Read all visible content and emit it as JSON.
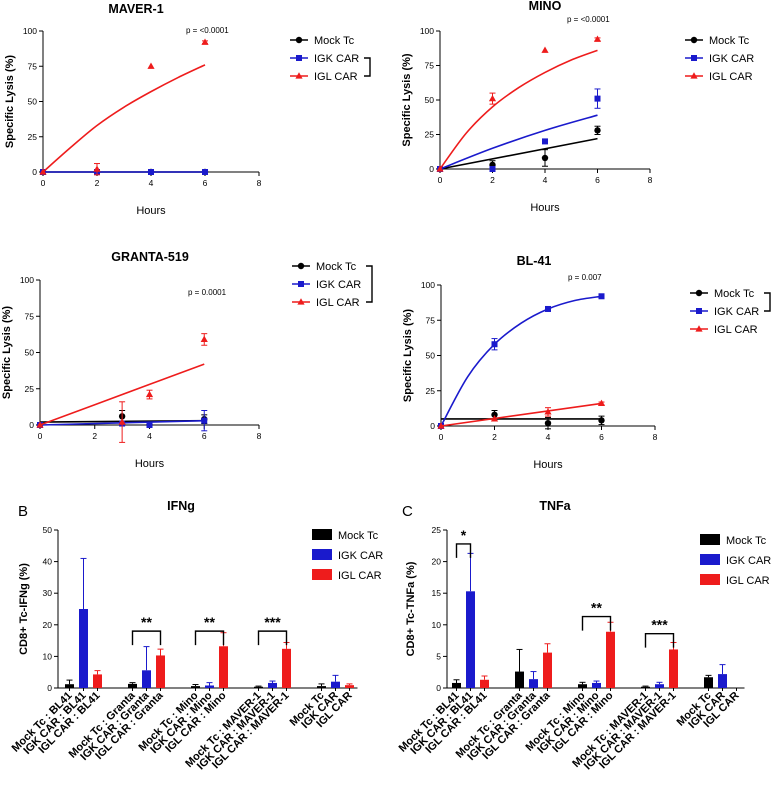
{
  "colors": {
    "mock": "#000000",
    "igk": "#1a1acc",
    "igl": "#ee1c1c",
    "axis": "#000000"
  },
  "chart_data": [
    {
      "type": "scatter",
      "title": "MAVER-1",
      "xlabel": "Hours",
      "ylabel": "Specific Lysis (%)",
      "xlim": [
        0,
        8
      ],
      "ylim": [
        0,
        100
      ],
      "xticks": [
        "0",
        "2",
        "4",
        "6",
        "8"
      ],
      "yticks": [
        "0",
        "25",
        "50",
        "75",
        "100"
      ],
      "pvalue": "p = <0.0001",
      "legend_position": "right",
      "legend_bracket": "igk-igl",
      "series": [
        {
          "name": "Mock Tc",
          "key": "mock",
          "marker": "circle",
          "fit": "line",
          "x": [
            0,
            2,
            4,
            6
          ],
          "y": [
            0,
            0,
            0,
            0
          ],
          "err": [
            0,
            0,
            0,
            0
          ],
          "fit_points": [
            [
              0,
              0
            ],
            [
              6,
              0
            ]
          ]
        },
        {
          "name": "IGK CAR",
          "key": "igk",
          "marker": "square",
          "fit": "line",
          "x": [
            0,
            2,
            4,
            6
          ],
          "y": [
            0,
            0,
            0,
            0
          ],
          "err": [
            0,
            0,
            0,
            0
          ],
          "fit_points": [
            [
              0,
              0
            ],
            [
              6,
              0
            ]
          ]
        },
        {
          "name": "IGL CAR",
          "key": "igl",
          "marker": "triangle",
          "fit": "curve",
          "x": [
            0,
            2,
            4,
            6
          ],
          "y": [
            0,
            2,
            75,
            92
          ],
          "err": [
            0,
            4,
            0,
            1
          ],
          "fit_points": [
            [
              0,
              0
            ],
            [
              1,
              17
            ],
            [
              2,
              33
            ],
            [
              3,
              46
            ],
            [
              4,
              57
            ],
            [
              5,
              67
            ],
            [
              6,
              76
            ]
          ]
        }
      ]
    },
    {
      "type": "scatter",
      "title": "MINO",
      "xlabel": "Hours",
      "ylabel": "Specific Lysis (%)",
      "xlim": [
        0,
        8
      ],
      "ylim": [
        0,
        100
      ],
      "xticks": [
        "0",
        "2",
        "4",
        "6",
        "8"
      ],
      "yticks": [
        "0",
        "25",
        "50",
        "75",
        "100"
      ],
      "pvalue": "p = <0.0001",
      "legend_position": "right",
      "legend_bracket": "",
      "series": [
        {
          "name": "Mock Tc",
          "key": "mock",
          "marker": "circle",
          "fit": "line",
          "x": [
            0,
            2,
            4,
            6
          ],
          "y": [
            0,
            3,
            8,
            28
          ],
          "err": [
            0,
            3,
            6,
            3
          ],
          "fit_points": [
            [
              0,
              0
            ],
            [
              6,
              22
            ]
          ]
        },
        {
          "name": "IGK CAR",
          "key": "igk",
          "marker": "square",
          "fit": "curve",
          "x": [
            0,
            2,
            4,
            6
          ],
          "y": [
            0,
            0,
            20,
            51
          ],
          "err": [
            0,
            0,
            0,
            7
          ],
          "fit_points": [
            [
              0,
              0
            ],
            [
              2,
              15
            ],
            [
              4,
              28
            ],
            [
              6,
              39
            ]
          ]
        },
        {
          "name": "IGL CAR",
          "key": "igl",
          "marker": "triangle",
          "fit": "curve",
          "x": [
            0,
            2,
            4,
            6
          ],
          "y": [
            0,
            51,
            86,
            94
          ],
          "err": [
            0,
            4,
            0,
            1
          ],
          "fit_points": [
            [
              0,
              0
            ],
            [
              1,
              26
            ],
            [
              2,
              45
            ],
            [
              3,
              59
            ],
            [
              4,
              70
            ],
            [
              5,
              79
            ],
            [
              6,
              86
            ]
          ]
        }
      ]
    },
    {
      "type": "scatter",
      "title": "GRANTA-519",
      "xlabel": "Hours",
      "ylabel": "Specific Lysis (%)",
      "xlim": [
        0,
        8
      ],
      "ylim": [
        0,
        100
      ],
      "xticks": [
        "0",
        "2",
        "4",
        "6",
        "8"
      ],
      "yticks": [
        "0",
        "25",
        "50",
        "75",
        "100"
      ],
      "pvalue": "p = 0.0001",
      "legend_position": "right",
      "legend_bracket": "mock-igl",
      "series": [
        {
          "name": "Mock Tc",
          "key": "mock",
          "marker": "circle",
          "fit": "line",
          "x": [
            0,
            3,
            4,
            6
          ],
          "y": [
            0,
            6,
            0,
            4
          ],
          "err": [
            0,
            4,
            0,
            3
          ],
          "fit_points": [
            [
              0,
              2
            ],
            [
              6,
              3
            ]
          ]
        },
        {
          "name": "IGK CAR",
          "key": "igk",
          "marker": "square",
          "fit": "line",
          "x": [
            0,
            3,
            4,
            6
          ],
          "y": [
            0,
            1,
            0,
            3
          ],
          "err": [
            0,
            0,
            0,
            7
          ],
          "fit_points": [
            [
              0,
              0
            ],
            [
              6,
              3
            ]
          ]
        },
        {
          "name": "IGL CAR",
          "key": "igl",
          "marker": "triangle",
          "fit": "curve",
          "x": [
            0,
            3,
            4,
            6
          ],
          "y": [
            0,
            2,
            21,
            59
          ],
          "err": [
            0,
            14,
            3,
            4
          ],
          "fit_points": [
            [
              0,
              0
            ],
            [
              2,
              14
            ],
            [
              4,
              28
            ],
            [
              6,
              42
            ]
          ]
        }
      ]
    },
    {
      "type": "scatter",
      "title": "BL-41",
      "xlabel": "Hours",
      "ylabel": "Specific Lysis (%)",
      "xlim": [
        0,
        8
      ],
      "ylim": [
        0,
        100
      ],
      "xticks": [
        "0",
        "2",
        "4",
        "6",
        "8"
      ],
      "yticks": [
        "0",
        "25",
        "50",
        "75",
        "100"
      ],
      "pvalue": "p = 0.007",
      "legend_position": "right",
      "legend_bracket": "mock-igk",
      "series": [
        {
          "name": "Mock Tc",
          "key": "mock",
          "marker": "circle",
          "fit": "line",
          "x": [
            0,
            2,
            4,
            6
          ],
          "y": [
            0,
            8,
            2,
            4
          ],
          "err": [
            0,
            3,
            4,
            3
          ],
          "fit_points": [
            [
              0,
              5
            ],
            [
              6,
              5
            ]
          ]
        },
        {
          "name": "IGK CAR",
          "key": "igk",
          "marker": "square",
          "fit": "curve",
          "x": [
            0,
            2,
            4,
            6
          ],
          "y": [
            0,
            58,
            83,
            92
          ],
          "err": [
            0,
            4,
            1,
            1
          ],
          "fit_points": [
            [
              0,
              0
            ],
            [
              1,
              35
            ],
            [
              2,
              58
            ],
            [
              3,
              73
            ],
            [
              4,
              83
            ],
            [
              5,
              89
            ],
            [
              6,
              92
            ]
          ]
        },
        {
          "name": "IGL CAR",
          "key": "igl",
          "marker": "triangle",
          "fit": "line",
          "x": [
            0,
            2,
            4,
            6
          ],
          "y": [
            0,
            5,
            10,
            16
          ],
          "err": [
            0,
            0,
            3,
            1
          ],
          "fit_points": [
            [
              0,
              0
            ],
            [
              6,
              16
            ]
          ]
        }
      ]
    },
    {
      "type": "bar",
      "panel": "B",
      "title": "IFNg",
      "ylabel": "CD8+ Tc-IFNg (%)",
      "ylim": [
        0,
        50
      ],
      "yticks": [
        "0",
        "10",
        "20",
        "30",
        "40",
        "50"
      ],
      "categories": [
        "Mock Tc : BL41",
        "IGK CAR : BL41",
        "IGL CAR : BL41",
        "Mock Tc : Granta",
        "IGK CAR : Granta",
        "IGL CAR : Granta",
        "Mock Tc : Mino",
        "IGK CAR : Mino",
        "IGL CAR : Mino",
        "Mock Tc : MAVER-1",
        "IGK CAR : MAVER-1",
        "IGL CAR : MAVER-1",
        "Mock Tc",
        "IGK CAR",
        "IGL CAR"
      ],
      "series_keys": [
        "mock",
        "igk",
        "igl",
        "mock",
        "igk",
        "igl",
        "mock",
        "igk",
        "igl",
        "mock",
        "igk",
        "igl",
        "mock",
        "igk",
        "igl"
      ],
      "values": [
        1.2,
        25,
        4.3,
        1.3,
        5.6,
        10.3,
        0.6,
        0.8,
        13.2,
        0.4,
        1.6,
        12.4,
        0.6,
        2,
        0.9
      ],
      "errors": [
        1.3,
        16,
        1.2,
        0.4,
        7.5,
        2,
        0.5,
        0.9,
        4.3,
        0.2,
        0.6,
        2,
        0.7,
        2,
        0.4
      ],
      "legend": [
        {
          "name": "Mock Tc",
          "key": "mock"
        },
        {
          "name": "IGK CAR",
          "key": "igk"
        },
        {
          "name": "IGL CAR",
          "key": "igl"
        }
      ],
      "annotations": [
        {
          "from": 3,
          "to": 5,
          "text": "**",
          "y": 18
        },
        {
          "from": 6,
          "to": 8,
          "text": "**",
          "y": 18
        },
        {
          "from": 9,
          "to": 11,
          "text": "***",
          "y": 18
        }
      ]
    },
    {
      "type": "bar",
      "panel": "C",
      "title": "TNFa",
      "ylabel": "CD8+ Tc-TNFa (%)",
      "ylim": [
        0,
        25
      ],
      "yticks": [
        "0",
        "5",
        "10",
        "15",
        "20",
        "25"
      ],
      "categories": [
        "Mock Tc : BL41",
        "IGK CAR : BL41",
        "IGL CAR : BL41",
        "Mock Tc : Granta",
        "IGK CAR : Granta",
        "IGL CAR : Granta",
        "Mock Tc : Mino",
        "IGK CAR : Mino",
        "IGL CAR : Mino",
        "Mock Tc : MAVER-1",
        "IGK CAR : MAVER-1",
        "IGL CAR : MAVER-1",
        "Mock Tc",
        "IGK CAR",
        "IGL CAR"
      ],
      "series_keys": [
        "mock",
        "igk",
        "igl",
        "mock",
        "igk",
        "igl",
        "mock",
        "igk",
        "igl",
        "mock",
        "igk",
        "igl",
        "mock",
        "igk",
        "igl"
      ],
      "values": [
        0.8,
        15.3,
        1.3,
        2.6,
        1.4,
        5.6,
        0.6,
        0.8,
        8.9,
        0.2,
        0.6,
        6.1,
        1.7,
        2.2,
        0
      ],
      "errors": [
        0.5,
        6,
        0.6,
        3.5,
        1.2,
        1.4,
        0.3,
        0.3,
        1.5,
        0.1,
        0.3,
        1.1,
        0.3,
        1.5,
        0
      ],
      "legend": [
        {
          "name": "Mock Tc",
          "key": "mock"
        },
        {
          "name": "IGK CAR",
          "key": "igk"
        },
        {
          "name": "IGL CAR",
          "key": "igl"
        }
      ],
      "annotations": [
        {
          "from": 0,
          "to": 1,
          "text": "*",
          "y": 22.8
        },
        {
          "from": 6,
          "to": 8,
          "text": "**",
          "y": 11.3
        },
        {
          "from": 9,
          "to": 11,
          "text": "***",
          "y": 8.6
        }
      ]
    }
  ]
}
